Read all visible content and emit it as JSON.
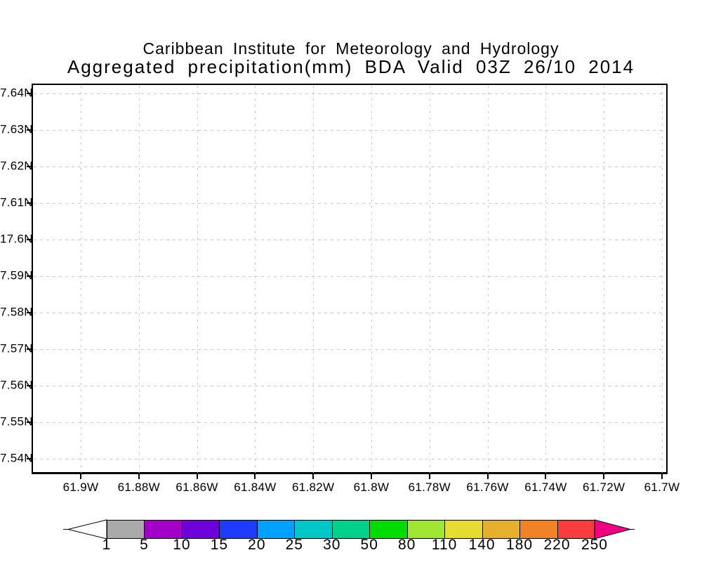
{
  "chart_data": {
    "type": "heatmap",
    "title": "Caribbean Institute for Meteorology and Hydrology",
    "subtitle": "Aggregated precipitation(mm) BDA Valid 03Z 26/10 2014",
    "y_tick_labels": [
      "7.64N",
      "7.63N",
      "7.62N",
      "7.61N",
      "17.6N",
      "7.59N",
      "7.58N",
      "7.57N",
      "7.56N",
      "7.55N",
      "7.54N"
    ],
    "x_tick_labels": [
      "61.9W",
      "61.88W",
      "61.86W",
      "61.84W",
      "61.82W",
      "61.8W",
      "61.78W",
      "61.76W",
      "61.74W",
      "61.72W",
      "61.7W"
    ],
    "grid": "dotted",
    "grid_color": "#c9c9c9",
    "axis_color": "#000000",
    "plot_area_values": [],
    "colorbar": {
      "tick_labels": [
        "1",
        "5",
        "10",
        "15",
        "20",
        "25",
        "30",
        "50",
        "80",
        "110",
        "140",
        "180",
        "220",
        "250"
      ],
      "segment_colors": [
        "#aaaaaa",
        "#a000c8",
        "#6e00dc",
        "#1e3cff",
        "#00a0ff",
        "#00c8c8",
        "#00d28c",
        "#00dc00",
        "#a0e632",
        "#e6dc32",
        "#e6af2d",
        "#f08228",
        "#fa3c3c"
      ],
      "below_min_arrow_color": "#ffffff",
      "above_max_arrow_color": "#f00082",
      "outline_color": "#000000"
    }
  }
}
